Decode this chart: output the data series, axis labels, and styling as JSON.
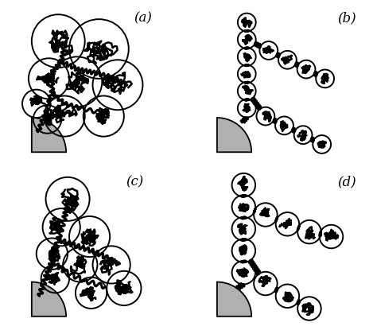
{
  "labels": [
    "(a)",
    "(b)",
    "(c)",
    "(d)"
  ],
  "background_color": "#ffffff",
  "surface_color": "#b0b0b0",
  "figsize": [
    4.74,
    4.2
  ],
  "dpi": 100,
  "lw_blob": 1.8,
  "lw_chain": 2.2,
  "lw_circle": 1.4
}
